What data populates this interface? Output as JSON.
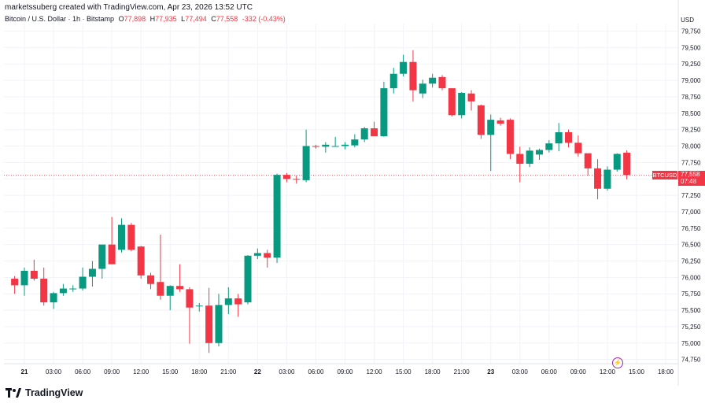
{
  "header": {
    "credit": "marketssuberg created with TradingView.com, Apr 23, 2026 13:52 UTC",
    "symbol": "Bitcoin / U.S. Dollar · 1h · Bitstamp",
    "open_label": "O",
    "open": "77,898",
    "high_label": "H",
    "high": "77,935",
    "low_label": "L",
    "low": "77,494",
    "close_label": "C",
    "close": "77,558",
    "change": "-332 (-0.43%)"
  },
  "axis": {
    "currency": "USD",
    "ticker_badge": "BTCUSD",
    "price_badge": "77,558",
    "countdown": "07:48"
  },
  "colors": {
    "up": "#089981",
    "down": "#f23645",
    "grid": "#f0f3fa",
    "last_price_line": "#f23645"
  },
  "branding": {
    "logo_text": "TradingView",
    "logo_icon": "tradingview-logo-icon"
  },
  "chart_data": {
    "type": "candlestick",
    "interval": "1h",
    "ylim": [
      74500,
      79800
    ],
    "y_ticks": [
      74750,
      75000,
      75250,
      75500,
      75750,
      76000,
      76250,
      76500,
      76750,
      77000,
      77250,
      77500,
      77750,
      78000,
      78250,
      78500,
      78750,
      79000,
      79250,
      79500,
      79750
    ],
    "y_tick_labels": [
      "74,750",
      "75,000",
      "75,250",
      "75,500",
      "75,750",
      "76,000",
      "76,250",
      "76,500",
      "76,750",
      "77,000",
      "77,250",
      "77,500",
      "77,750",
      "78,000",
      "78,250",
      "78,500",
      "78,750",
      "79,000",
      "79,250",
      "79,500",
      "79,750"
    ],
    "x_tick_labels": [
      "21",
      "03:00",
      "06:00",
      "09:00",
      "12:00",
      "15:00",
      "18:00",
      "21:00",
      "22",
      "03:00",
      "06:00",
      "09:00",
      "12:00",
      "15:00",
      "18:00",
      "21:00",
      "23",
      "03:00",
      "06:00",
      "09:00",
      "12:00",
      "15:00",
      "18:00"
    ],
    "x_tick_hours": [
      0,
      3,
      6,
      9,
      12,
      15,
      18,
      21,
      24,
      27,
      30,
      33,
      36,
      39,
      42,
      45,
      48,
      51,
      54,
      57,
      60,
      63,
      66
    ],
    "last_price": 77558,
    "candles": [
      {
        "o": 75980,
        "h": 76020,
        "l": 75750,
        "c": 75880
      },
      {
        "o": 75880,
        "h": 76150,
        "l": 75720,
        "c": 76100
      },
      {
        "o": 76100,
        "h": 76270,
        "l": 75950,
        "c": 75980
      },
      {
        "o": 75980,
        "h": 76150,
        "l": 75570,
        "c": 75620
      },
      {
        "o": 75620,
        "h": 75780,
        "l": 75520,
        "c": 75760
      },
      {
        "o": 75760,
        "h": 75900,
        "l": 75720,
        "c": 75830
      },
      {
        "o": 75830,
        "h": 75880,
        "l": 75780,
        "c": 75830
      },
      {
        "o": 75830,
        "h": 76150,
        "l": 75800,
        "c": 76010
      },
      {
        "o": 76010,
        "h": 76250,
        "l": 75860,
        "c": 76130
      },
      {
        "o": 76130,
        "h": 76450,
        "l": 75980,
        "c": 76500
      },
      {
        "o": 76500,
        "h": 76920,
        "l": 76250,
        "c": 76200
      },
      {
        "o": 76420,
        "h": 76900,
        "l": 76380,
        "c": 76800
      },
      {
        "o": 76800,
        "h": 76830,
        "l": 76400,
        "c": 76420
      },
      {
        "o": 76470,
        "h": 76480,
        "l": 75980,
        "c": 76030
      },
      {
        "o": 76030,
        "h": 76070,
        "l": 75820,
        "c": 75900
      },
      {
        "o": 75930,
        "h": 76650,
        "l": 75660,
        "c": 75720
      },
      {
        "o": 75720,
        "h": 75880,
        "l": 75500,
        "c": 75870
      },
      {
        "o": 75870,
        "h": 76200,
        "l": 75780,
        "c": 75820
      },
      {
        "o": 75820,
        "h": 75850,
        "l": 74990,
        "c": 75540
      },
      {
        "o": 75570,
        "h": 75610,
        "l": 75480,
        "c": 75570
      },
      {
        "o": 75570,
        "h": 75840,
        "l": 74850,
        "c": 75000
      },
      {
        "o": 75000,
        "h": 75750,
        "l": 74950,
        "c": 75580
      },
      {
        "o": 75580,
        "h": 75850,
        "l": 75440,
        "c": 75680
      },
      {
        "o": 75680,
        "h": 75750,
        "l": 75400,
        "c": 75590
      },
      {
        "o": 75620,
        "h": 76340,
        "l": 75590,
        "c": 76330
      },
      {
        "o": 76330,
        "h": 76440,
        "l": 76280,
        "c": 76370
      },
      {
        "o": 76370,
        "h": 76420,
        "l": 76150,
        "c": 76300
      },
      {
        "o": 76300,
        "h": 77580,
        "l": 76220,
        "c": 77560
      },
      {
        "o": 77560,
        "h": 77590,
        "l": 77450,
        "c": 77500
      },
      {
        "o": 77500,
        "h": 77550,
        "l": 77430,
        "c": 77490
      },
      {
        "o": 77480,
        "h": 78250,
        "l": 77450,
        "c": 78000
      },
      {
        "o": 78000,
        "h": 78020,
        "l": 77960,
        "c": 77990
      },
      {
        "o": 77990,
        "h": 78060,
        "l": 77900,
        "c": 78020
      },
      {
        "o": 78000,
        "h": 78140,
        "l": 77990,
        "c": 78000
      },
      {
        "o": 78000,
        "h": 78060,
        "l": 77950,
        "c": 78020
      },
      {
        "o": 78010,
        "h": 78180,
        "l": 77980,
        "c": 78100
      },
      {
        "o": 78100,
        "h": 78290,
        "l": 78060,
        "c": 78270
      },
      {
        "o": 78270,
        "h": 78370,
        "l": 78150,
        "c": 78150
      },
      {
        "o": 78150,
        "h": 78980,
        "l": 78140,
        "c": 78880
      },
      {
        "o": 78880,
        "h": 79190,
        "l": 78800,
        "c": 79100
      },
      {
        "o": 79100,
        "h": 79390,
        "l": 79060,
        "c": 79280
      },
      {
        "o": 79280,
        "h": 79460,
        "l": 78680,
        "c": 78850
      },
      {
        "o": 78800,
        "h": 79010,
        "l": 78730,
        "c": 78950
      },
      {
        "o": 78950,
        "h": 79100,
        "l": 78890,
        "c": 79040
      },
      {
        "o": 79050,
        "h": 79080,
        "l": 78850,
        "c": 78880
      },
      {
        "o": 78880,
        "h": 78870,
        "l": 78450,
        "c": 78470
      },
      {
        "o": 78470,
        "h": 78820,
        "l": 78420,
        "c": 78810
      },
      {
        "o": 78800,
        "h": 78850,
        "l": 78540,
        "c": 78680
      },
      {
        "o": 78620,
        "h": 78630,
        "l": 78110,
        "c": 78170
      },
      {
        "o": 78170,
        "h": 78480,
        "l": 77620,
        "c": 78400
      },
      {
        "o": 78390,
        "h": 78430,
        "l": 78310,
        "c": 78340
      },
      {
        "o": 78400,
        "h": 78420,
        "l": 77800,
        "c": 77880
      },
      {
        "o": 77880,
        "h": 77990,
        "l": 77450,
        "c": 77730
      },
      {
        "o": 77730,
        "h": 77980,
        "l": 77680,
        "c": 77930
      },
      {
        "o": 77870,
        "h": 77960,
        "l": 77790,
        "c": 77940
      },
      {
        "o": 77940,
        "h": 78090,
        "l": 77900,
        "c": 78040
      },
      {
        "o": 78040,
        "h": 78350,
        "l": 77920,
        "c": 78210
      },
      {
        "o": 78210,
        "h": 78250,
        "l": 77980,
        "c": 78050
      },
      {
        "o": 78050,
        "h": 78160,
        "l": 77840,
        "c": 77890
      },
      {
        "o": 77890,
        "h": 77860,
        "l": 77550,
        "c": 77660
      },
      {
        "o": 77660,
        "h": 77800,
        "l": 77190,
        "c": 77350
      },
      {
        "o": 77350,
        "h": 77690,
        "l": 77320,
        "c": 77640
      },
      {
        "o": 77640,
        "h": 77890,
        "l": 77610,
        "c": 77880
      },
      {
        "o": 77898,
        "h": 77935,
        "l": 77494,
        "c": 77558
      }
    ]
  }
}
